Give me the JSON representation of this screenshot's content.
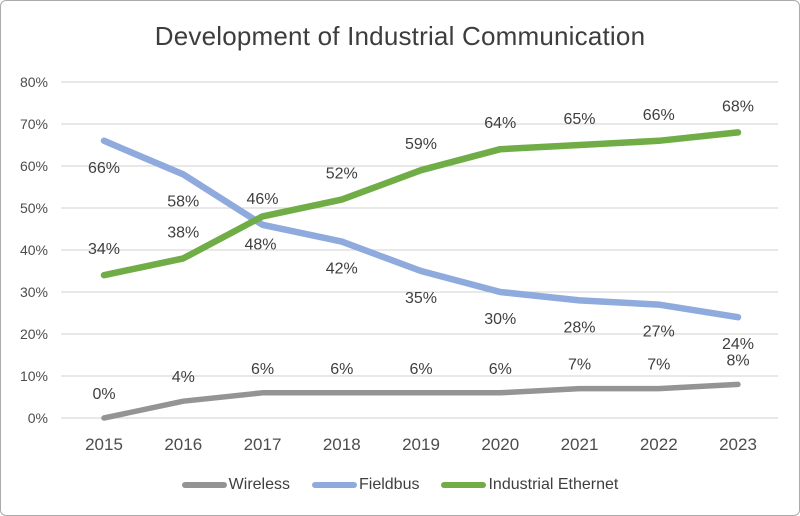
{
  "chart": {
    "title": "Development of Industrial Communication"
  },
  "chart_data": {
    "type": "line",
    "title": "Development of Industrial Communication",
    "categories": [
      "2015",
      "2016",
      "2017",
      "2018",
      "2019",
      "2020",
      "2021",
      "2022",
      "2023"
    ],
    "series": [
      {
        "name": "Wireless",
        "color": "#949494",
        "values": [
          0,
          4,
          6,
          6,
          6,
          6,
          7,
          7,
          8
        ]
      },
      {
        "name": "Fieldbus",
        "color": "#8FAADC",
        "values": [
          66,
          58,
          46,
          42,
          35,
          30,
          28,
          27,
          24
        ]
      },
      {
        "name": "Industrial Ethernet",
        "color": "#70AD47",
        "values": [
          34,
          38,
          48,
          52,
          59,
          64,
          65,
          66,
          68
        ]
      }
    ],
    "ylim": [
      0,
      80
    ],
    "ytick_step": 10,
    "yticks": [
      "0%",
      "10%",
      "20%",
      "30%",
      "40%",
      "50%",
      "60%",
      "70%",
      "80%"
    ],
    "tick_suffix": "%",
    "data_labels": true,
    "grid": "horizontal",
    "gridline_color": "#D9D9D9",
    "legend_position": "bottom",
    "colors": {
      "data_label_text": "#3F3F3F",
      "axis_tick_text": "#4D4D4D",
      "title_text": "#3D3D3D",
      "frame_border": "#ABABAB"
    }
  }
}
